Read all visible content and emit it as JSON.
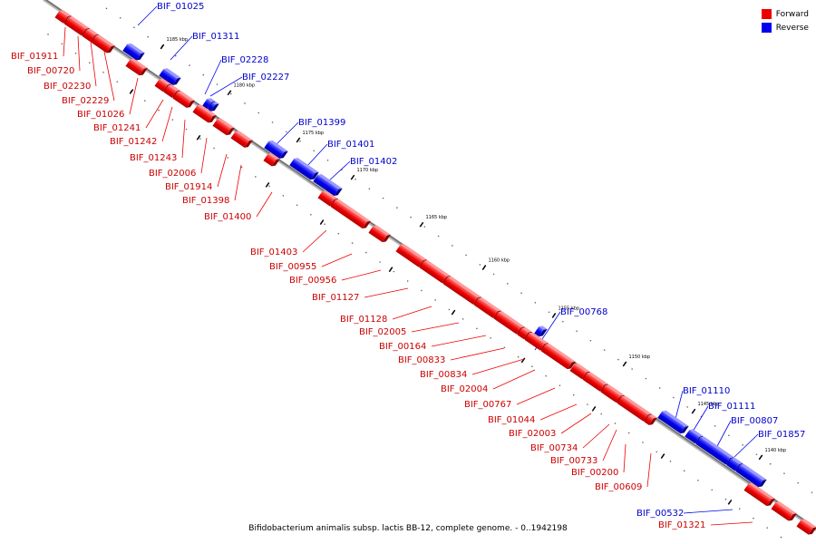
{
  "legend": [
    {
      "label": "Forward",
      "color": "#ee0000"
    },
    {
      "label": "Reverse",
      "color": "#0000ee"
    }
  ],
  "caption": "Bifidobacterium animalis subsp. lactis BB-12, complete genome. - 0..1942198",
  "colors": {
    "forward": "#ee0000",
    "reverse": "#0000ee",
    "backbone": "#777777"
  },
  "scale_labels": [
    "1185 kbp",
    "1180 kbp",
    "1175 kbp",
    "1170 kbp",
    "1165 kbp",
    "1160 kbp",
    "1155 kbp",
    "1150 kbp",
    "1145 kbp",
    "1140 kbp"
  ],
  "genes": [
    {
      "name": "BIF_01911",
      "strand": "forward"
    },
    {
      "name": "BIF_00720",
      "strand": "forward"
    },
    {
      "name": "BIF_02230",
      "strand": "forward"
    },
    {
      "name": "BIF_02229",
      "strand": "forward"
    },
    {
      "name": "BIF_01026",
      "strand": "forward"
    },
    {
      "name": "BIF_01241",
      "strand": "forward"
    },
    {
      "name": "BIF_01242",
      "strand": "forward"
    },
    {
      "name": "BIF_01243",
      "strand": "forward"
    },
    {
      "name": "BIF_02006",
      "strand": "forward"
    },
    {
      "name": "BIF_01914",
      "strand": "forward"
    },
    {
      "name": "BIF_01398",
      "strand": "forward"
    },
    {
      "name": "BIF_01400",
      "strand": "forward"
    },
    {
      "name": "BIF_01403",
      "strand": "forward"
    },
    {
      "name": "BIF_00955",
      "strand": "forward"
    },
    {
      "name": "BIF_00956",
      "strand": "forward"
    },
    {
      "name": "BIF_01127",
      "strand": "forward"
    },
    {
      "name": "BIF_01128",
      "strand": "forward"
    },
    {
      "name": "BIF_02005",
      "strand": "forward"
    },
    {
      "name": "BIF_00164",
      "strand": "forward"
    },
    {
      "name": "BIF_00833",
      "strand": "forward"
    },
    {
      "name": "BIF_00834",
      "strand": "forward"
    },
    {
      "name": "BIF_02004",
      "strand": "forward"
    },
    {
      "name": "BIF_00767",
      "strand": "forward"
    },
    {
      "name": "BIF_01044",
      "strand": "forward"
    },
    {
      "name": "BIF_02003",
      "strand": "forward"
    },
    {
      "name": "BIF_00734",
      "strand": "forward"
    },
    {
      "name": "BIF_00733",
      "strand": "forward"
    },
    {
      "name": "BIF_00200",
      "strand": "forward"
    },
    {
      "name": "BIF_00609",
      "strand": "forward"
    },
    {
      "name": "BIF_01321",
      "strand": "forward"
    },
    {
      "name": "BIF_01025",
      "strand": "reverse"
    },
    {
      "name": "BIF_01311",
      "strand": "reverse"
    },
    {
      "name": "BIF_02228",
      "strand": "reverse"
    },
    {
      "name": "BIF_02227",
      "strand": "reverse"
    },
    {
      "name": "BIF_01399",
      "strand": "reverse"
    },
    {
      "name": "BIF_01401",
      "strand": "reverse"
    },
    {
      "name": "BIF_01402",
      "strand": "reverse"
    },
    {
      "name": "BIF_00768",
      "strand": "reverse"
    },
    {
      "name": "BIF_01110",
      "strand": "reverse"
    },
    {
      "name": "BIF_01111",
      "strand": "reverse"
    },
    {
      "name": "BIF_00807",
      "strand": "reverse"
    },
    {
      "name": "BIF_01857",
      "strand": "reverse"
    },
    {
      "name": "BIF_00532",
      "strand": "reverse"
    }
  ]
}
